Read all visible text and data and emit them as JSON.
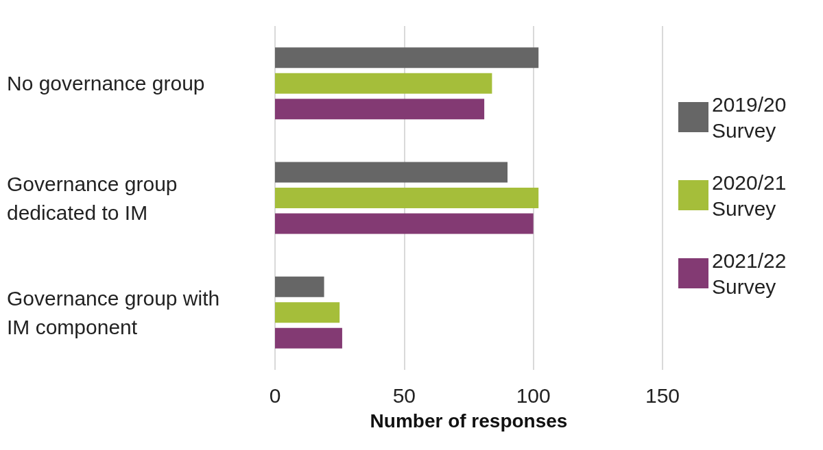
{
  "chart_data": {
    "type": "bar",
    "orientation": "horizontal",
    "xlabel": "Number of responses",
    "categories": [
      "No governance group",
      "Governance group dedicated to IM",
      "Governance group with IM component"
    ],
    "series": [
      {
        "name": "2019/20 Survey",
        "color": "#666666",
        "values": [
          102,
          90,
          19
        ]
      },
      {
        "name": "2020/21 Survey",
        "color": "#a5be3a",
        "values": [
          84,
          102,
          25
        ]
      },
      {
        "name": "2021/22 Survey",
        "color": "#833a73",
        "values": [
          81,
          100,
          26
        ]
      }
    ],
    "xlim": [
      0,
      150
    ],
    "xticks": [
      0,
      50,
      100,
      150
    ],
    "grid": "x",
    "legend": "right"
  }
}
